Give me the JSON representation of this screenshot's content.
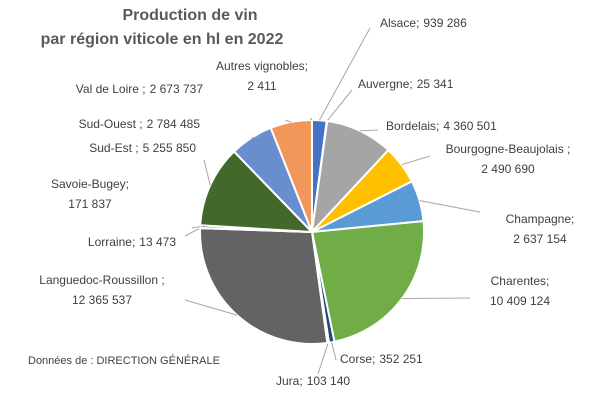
{
  "chart_data": {
    "type": "pie",
    "title": [
      "Production de vin",
      "par région viticole en hl en  2022"
    ],
    "categories": [
      "Alsace;",
      "Auvergne;",
      "Bordelais;",
      "Bourgogne-Beaujolais ;",
      "Champagne;",
      "Charentes;",
      "Corse;",
      "Jura;",
      "Languedoc-Roussillon ;",
      "Lorraine;",
      "Savoie-Bugey;",
      "Sud-Est ;",
      "Sud-Ouest ;",
      "Val de Loire ;",
      "Autres vignobles;"
    ],
    "values": [
      939286,
      25341,
      4360501,
      2490690,
      2637154,
      10409124,
      352251,
      103140,
      12365537,
      13473,
      171837,
      5255850,
      2784485,
      2673737,
      2411
    ],
    "value_labels": [
      "939 286",
      "25 341",
      "4 360 501",
      "2 490 690",
      "2 637 154",
      "10 409 124",
      "352 251",
      "103 140",
      "12 365 537",
      "13 473",
      "171 837",
      "5 255 850",
      "2 784 485",
      "2 673 737",
      "2 411"
    ],
    "colors": [
      "#4472c4",
      "#ed7d31",
      "#a5a5a5",
      "#ffc000",
      "#5b9bd5",
      "#70ad47",
      "#264478",
      "#2f4f8f",
      "#636363",
      "#997300",
      "#255e91",
      "#43682b",
      "#698ed0",
      "#f1975a",
      "#b7b7b7"
    ],
    "annotation": "Données de : DIRECTION GÉNÉRALE"
  }
}
